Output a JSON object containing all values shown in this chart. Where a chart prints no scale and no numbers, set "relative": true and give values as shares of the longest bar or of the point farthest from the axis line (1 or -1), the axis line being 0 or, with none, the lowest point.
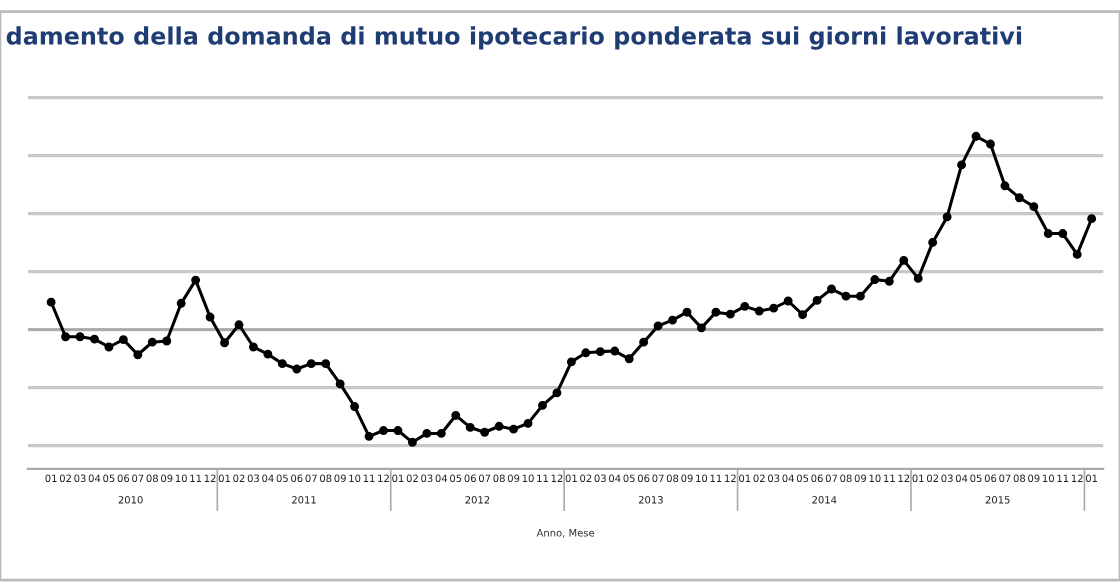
{
  "chart_data": {
    "type": "line",
    "title": "damento della domanda di mutuo ipotecario ponderata sui giorni lavorativi",
    "xlabel": "Anno, Mese",
    "relative": true,
    "grid": "y",
    "marker": "circle",
    "line_style": "solid",
    "categories": [
      "01",
      "02",
      "03",
      "04",
      "05",
      "06",
      "07",
      "08",
      "09",
      "10",
      "11",
      "12",
      "01",
      "02",
      "03",
      "04",
      "05",
      "06",
      "07",
      "08",
      "09",
      "10",
      "11",
      "12",
      "01",
      "02",
      "03",
      "04",
      "05",
      "06",
      "07",
      "08",
      "09",
      "10",
      "11",
      "12",
      "01",
      "02",
      "03",
      "04",
      "05",
      "06",
      "07",
      "08",
      "09",
      "10",
      "11",
      "12",
      "01",
      "02",
      "03",
      "04",
      "05",
      "06",
      "07",
      "08",
      "09",
      "10",
      "11",
      "12",
      "01",
      "02",
      "03",
      "04",
      "05",
      "06",
      "07",
      "08",
      "09",
      "10",
      "11",
      "12",
      "01"
    ],
    "series": [
      {
        "color": "#000000",
        "values": [
          0.142,
          -0.037,
          -0.037,
          -0.049,
          -0.09,
          -0.052,
          -0.13,
          -0.065,
          -0.059,
          0.136,
          0.256,
          0.065,
          -0.068,
          0.025,
          -0.09,
          -0.127,
          -0.176,
          -0.204,
          -0.176,
          -0.176,
          -0.281,
          -0.398,
          -0.552,
          -0.522,
          -0.522,
          -0.583,
          -0.537,
          -0.537,
          -0.444,
          -0.506,
          -0.531,
          -0.5,
          -0.515,
          -0.485,
          -0.392,
          -0.327,
          -0.167,
          -0.12,
          -0.114,
          -0.111,
          -0.151,
          -0.065,
          0.019,
          0.049,
          0.09,
          0.009,
          0.09,
          0.08,
          0.12,
          0.096,
          0.111,
          0.148,
          0.077,
          0.151,
          0.21,
          0.173,
          0.173,
          0.259,
          0.25,
          0.358,
          0.265,
          0.451,
          0.583,
          0.852,
          1,
          0.96,
          0.744,
          0.682,
          0.636,
          0.497,
          0.497,
          0.389,
          0.574
        ]
      }
    ],
    "annotations": [
      "2010",
      "2011",
      "2012",
      "2013",
      "2014",
      "2015"
    ]
  }
}
